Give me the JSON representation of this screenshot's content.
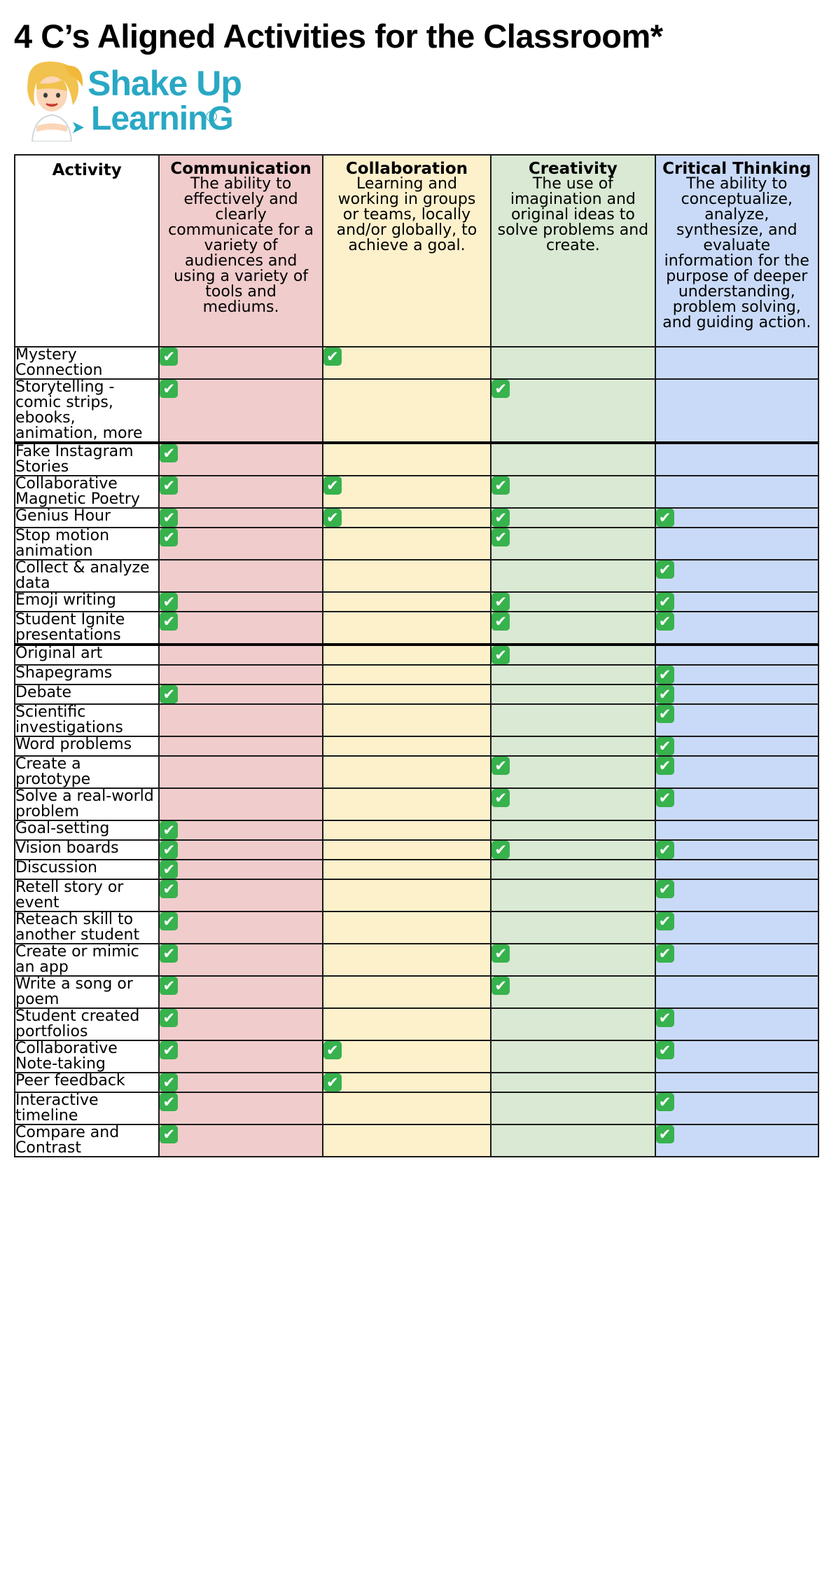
{
  "title": "4 C’s Aligned Activities for the Classroom*",
  "logo": {
    "line1": "Shake Up",
    "line2": "LearninG",
    "mark": "®"
  },
  "colors": {
    "communication": "#f1cccc",
    "collaboration": "#fdf1cc",
    "creativity": "#d9e9d3",
    "critical_thinking": "#c9daf8",
    "check": "#37b24d",
    "logo": "#29a8c4"
  },
  "icons": {
    "check": "white-check-mark-in-green-box"
  },
  "table": {
    "activity_header": "Activity",
    "columns": [
      {
        "key": "com",
        "name": "Communication",
        "description": "The ability to effectively and clearly communicate for a variety of audiences and using a variety of tools and mediums."
      },
      {
        "key": "col",
        "name": "Collaboration",
        "description": "Learning and working in groups or teams, locally and/or globally, to achieve a goal."
      },
      {
        "key": "cre",
        "name": "Creativity",
        "description": "The use of imagination and original ideas to solve problems and create."
      },
      {
        "key": "crt",
        "name": "Critical Thinking",
        "description": "The ability to conceptualize, analyze, synthesize, and evaluate information for the purpose of deeper understanding, problem solving, and guiding action."
      }
    ],
    "rows": [
      {
        "activity": "Mystery Connection",
        "com": true,
        "col": true,
        "cre": false,
        "crt": false
      },
      {
        "activity": "Storytelling - comic strips, ebooks, animation, more",
        "com": true,
        "col": false,
        "cre": true,
        "crt": false
      },
      {
        "activity": "Fake Instagram Stories",
        "com": true,
        "col": false,
        "cre": false,
        "crt": false,
        "section_break": true
      },
      {
        "activity": "Collaborative Magnetic Poetry",
        "com": true,
        "col": true,
        "cre": true,
        "crt": false
      },
      {
        "activity": "Genius Hour",
        "com": true,
        "col": true,
        "cre": true,
        "crt": true
      },
      {
        "activity": "Stop motion animation",
        "com": true,
        "col": false,
        "cre": true,
        "crt": false
      },
      {
        "activity": "Collect & analyze data",
        "com": false,
        "col": false,
        "cre": false,
        "crt": true
      },
      {
        "activity": "Emoji writing",
        "com": true,
        "col": false,
        "cre": true,
        "crt": true
      },
      {
        "activity": "Student Ignite presentations",
        "com": true,
        "col": false,
        "cre": true,
        "crt": true
      },
      {
        "activity": "Original art",
        "com": false,
        "col": false,
        "cre": true,
        "crt": false,
        "section_break": true
      },
      {
        "activity": "Shapegrams",
        "com": false,
        "col": false,
        "cre": false,
        "crt": true
      },
      {
        "activity": "Debate",
        "com": true,
        "col": false,
        "cre": false,
        "crt": true
      },
      {
        "activity": "Scientific investigations",
        "com": false,
        "col": false,
        "cre": false,
        "crt": true
      },
      {
        "activity": "Word problems",
        "com": false,
        "col": false,
        "cre": false,
        "crt": true
      },
      {
        "activity": "Create a prototype",
        "com": false,
        "col": false,
        "cre": true,
        "crt": true
      },
      {
        "activity": "Solve a real-world problem",
        "com": false,
        "col": false,
        "cre": true,
        "crt": true
      },
      {
        "activity": "Goal-setting",
        "com": true,
        "col": false,
        "cre": false,
        "crt": false
      },
      {
        "activity": "Vision boards",
        "com": true,
        "col": false,
        "cre": true,
        "crt": true
      },
      {
        "activity": "Discussion",
        "com": true,
        "col": false,
        "cre": false,
        "crt": false
      },
      {
        "activity": "Retell story or event",
        "com": true,
        "col": false,
        "cre": false,
        "crt": true
      },
      {
        "activity": "Reteach skill to another student",
        "com": true,
        "col": false,
        "cre": false,
        "crt": true
      },
      {
        "activity": "Create or mimic an app",
        "com": true,
        "col": false,
        "cre": true,
        "crt": true
      },
      {
        "activity": "Write a song or poem",
        "com": true,
        "col": false,
        "cre": true,
        "crt": false
      },
      {
        "activity": "Student created portfolios",
        "com": true,
        "col": false,
        "cre": false,
        "crt": true
      },
      {
        "activity": "Collaborative Note-taking",
        "com": true,
        "col": true,
        "cre": false,
        "crt": true
      },
      {
        "activity": "Peer feedback",
        "com": true,
        "col": true,
        "cre": false,
        "crt": false
      },
      {
        "activity": "Interactive timeline",
        "com": true,
        "col": false,
        "cre": false,
        "crt": true
      },
      {
        "activity": "Compare and Contrast",
        "com": true,
        "col": false,
        "cre": false,
        "crt": true
      }
    ]
  }
}
